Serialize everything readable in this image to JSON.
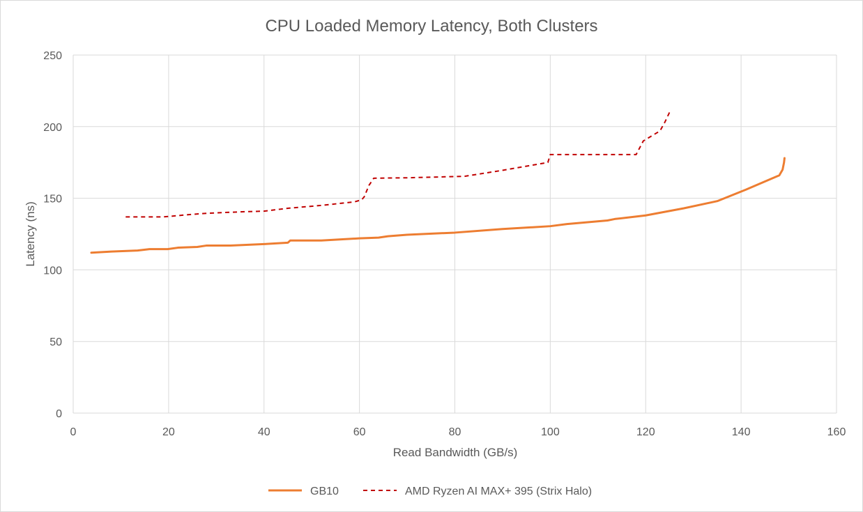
{
  "chart_data": {
    "type": "line",
    "title": "CPU Loaded Memory Latency, Both Clusters",
    "xlabel": "Read Bandwidth (GB/s)",
    "ylabel": "Latency (ns)",
    "xlim": [
      0,
      160
    ],
    "ylim": [
      0,
      250
    ],
    "xticks": [
      "0",
      "20",
      "40",
      "60",
      "80",
      "100",
      "120",
      "140",
      "160"
    ],
    "yticks": [
      "0",
      "50",
      "100",
      "150",
      "200",
      "250"
    ],
    "grid": true,
    "legend_position": "bottom",
    "series": [
      {
        "name": "GB10",
        "color": "#ed7d31",
        "style": "solid",
        "points": [
          [
            3.8,
            112
          ],
          [
            8,
            112.8
          ],
          [
            13.5,
            113.5
          ],
          [
            16,
            114.5
          ],
          [
            19.8,
            114.5
          ],
          [
            22,
            115.5
          ],
          [
            26,
            116
          ],
          [
            28,
            117
          ],
          [
            33,
            117
          ],
          [
            40,
            118
          ],
          [
            45,
            119
          ],
          [
            45.5,
            120.5
          ],
          [
            52,
            120.5
          ],
          [
            60,
            122
          ],
          [
            64,
            122.5
          ],
          [
            66,
            123.5
          ],
          [
            70,
            124.5
          ],
          [
            80,
            126
          ],
          [
            90,
            128.5
          ],
          [
            100,
            130.5
          ],
          [
            103.5,
            132
          ],
          [
            112,
            134.5
          ],
          [
            113.5,
            135.5
          ],
          [
            120,
            138
          ],
          [
            128,
            143
          ],
          [
            135,
            148
          ],
          [
            141,
            156
          ],
          [
            148,
            166
          ],
          [
            148.7,
            170
          ],
          [
            149,
            175
          ],
          [
            149.1,
            178
          ]
        ]
      },
      {
        "name": "AMD Ryzen AI MAX+ 395 (Strix Halo)",
        "color": "#c00000",
        "style": "dashed",
        "points": [
          [
            11,
            137
          ],
          [
            19,
            137
          ],
          [
            24,
            138.5
          ],
          [
            28,
            139.5
          ],
          [
            35,
            140.5
          ],
          [
            40,
            141
          ],
          [
            45,
            143
          ],
          [
            52,
            145
          ],
          [
            59,
            147.5
          ],
          [
            60.5,
            149
          ],
          [
            61,
            151
          ],
          [
            62,
            159
          ],
          [
            63,
            164
          ],
          [
            70,
            164.3
          ],
          [
            82,
            165.3
          ],
          [
            90,
            169.5
          ],
          [
            99.5,
            175
          ],
          [
            100,
            180.5
          ],
          [
            118,
            180.5
          ],
          [
            119.5,
            190
          ],
          [
            122,
            195
          ],
          [
            123,
            197
          ],
          [
            124,
            203
          ],
          [
            125,
            210
          ]
        ]
      }
    ]
  }
}
